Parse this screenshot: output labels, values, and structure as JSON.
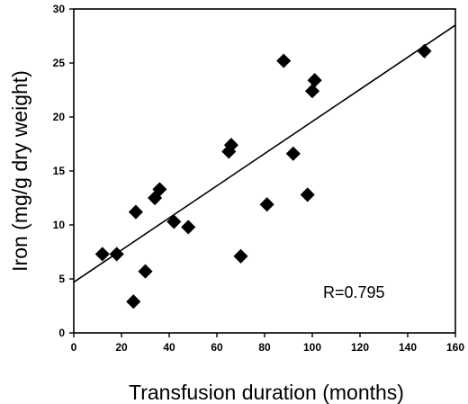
{
  "chart_data": {
    "type": "scatter",
    "title": "",
    "xlabel": "Transfusion duration (months)",
    "ylabel": "Iron (mg/g dry weight)",
    "xlim": [
      0,
      160
    ],
    "ylim": [
      0,
      30
    ],
    "xticks": [
      0,
      20,
      40,
      60,
      80,
      100,
      120,
      140,
      160
    ],
    "yticks": [
      0,
      5,
      10,
      15,
      20,
      25,
      30
    ],
    "grid": false,
    "legend": "none",
    "marker": "diamond",
    "color": "#000000",
    "points": [
      {
        "x": 12,
        "y": 7.3
      },
      {
        "x": 18,
        "y": 7.3
      },
      {
        "x": 25,
        "y": 2.9
      },
      {
        "x": 26,
        "y": 11.2
      },
      {
        "x": 30,
        "y": 5.7
      },
      {
        "x": 34,
        "y": 12.5
      },
      {
        "x": 36,
        "y": 13.3
      },
      {
        "x": 42,
        "y": 10.3
      },
      {
        "x": 48,
        "y": 9.8
      },
      {
        "x": 65,
        "y": 16.8
      },
      {
        "x": 66,
        "y": 17.4
      },
      {
        "x": 70,
        "y": 7.1
      },
      {
        "x": 81,
        "y": 11.9
      },
      {
        "x": 88,
        "y": 25.2
      },
      {
        "x": 92,
        "y": 16.6
      },
      {
        "x": 98,
        "y": 12.8
      },
      {
        "x": 100,
        "y": 22.4
      },
      {
        "x": 101,
        "y": 23.4
      },
      {
        "x": 147,
        "y": 26.1
      }
    ],
    "regression": {
      "intercept": 4.7,
      "slope": 0.1488
    },
    "annotation": "R=0.795"
  }
}
